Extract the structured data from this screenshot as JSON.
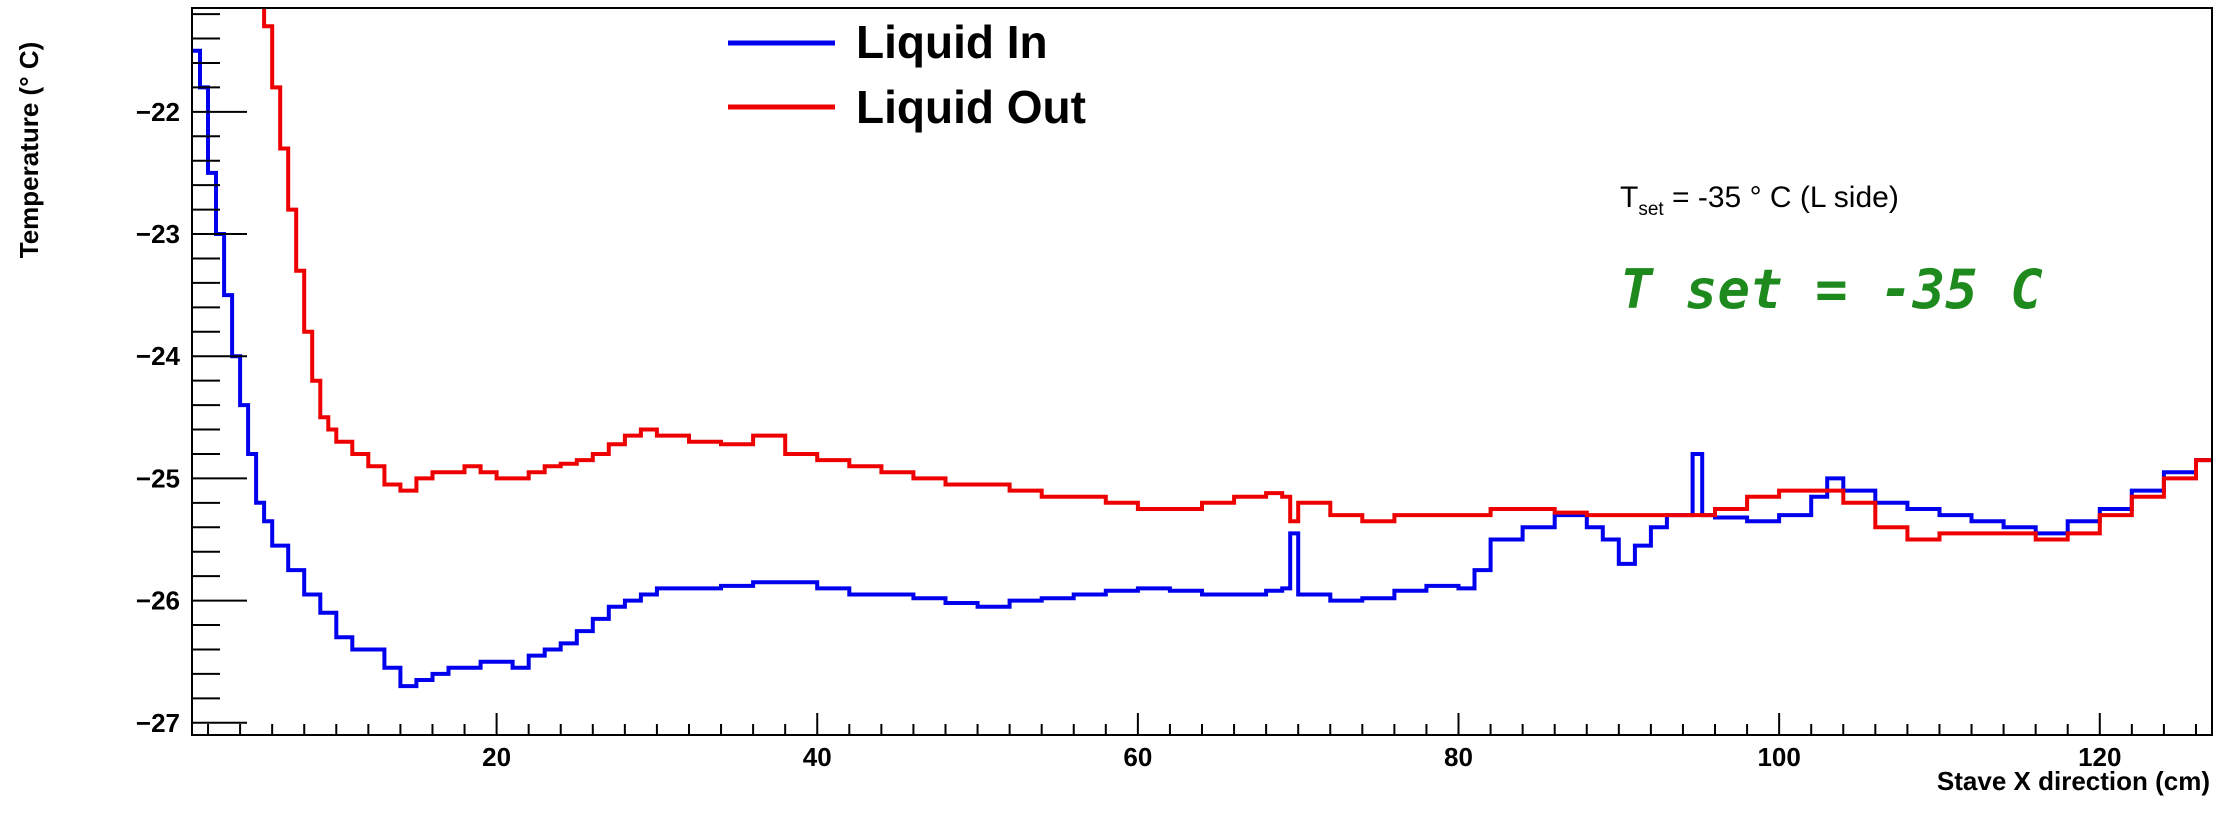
{
  "chart_data": {
    "type": "line",
    "xlabel": "Stave X direction (cm)",
    "ylabel": "Temperature (° C)",
    "xlim": [
      1,
      127
    ],
    "ylim": [
      -27.1,
      -21.15
    ],
    "x_ticks": [
      20,
      40,
      60,
      80,
      100,
      120
    ],
    "y_ticks": [
      -22,
      -23,
      -24,
      -25,
      -26,
      -27
    ],
    "grid": false,
    "legend_position": "top-left",
    "style": "step",
    "series": [
      {
        "name": "Liquid In",
        "color": "#0000ee",
        "points": [
          [
            1.0,
            -21.5
          ],
          [
            1.5,
            -21.8
          ],
          [
            2.0,
            -22.5
          ],
          [
            2.5,
            -23.0
          ],
          [
            3.0,
            -23.5
          ],
          [
            3.5,
            -24.0
          ],
          [
            4.0,
            -24.4
          ],
          [
            4.5,
            -24.8
          ],
          [
            5.0,
            -25.2
          ],
          [
            5.5,
            -25.35
          ],
          [
            6.0,
            -25.55
          ],
          [
            7.0,
            -25.75
          ],
          [
            8.0,
            -25.95
          ],
          [
            9.0,
            -26.1
          ],
          [
            10.0,
            -26.3
          ],
          [
            11.0,
            -26.4
          ],
          [
            12.0,
            -26.4
          ],
          [
            13.0,
            -26.55
          ],
          [
            14.0,
            -26.7
          ],
          [
            15.0,
            -26.65
          ],
          [
            16.0,
            -26.6
          ],
          [
            17.0,
            -26.55
          ],
          [
            18.0,
            -26.55
          ],
          [
            19.0,
            -26.5
          ],
          [
            20.0,
            -26.5
          ],
          [
            21.0,
            -26.55
          ],
          [
            22.0,
            -26.45
          ],
          [
            23.0,
            -26.4
          ],
          [
            24.0,
            -26.35
          ],
          [
            25.0,
            -26.25
          ],
          [
            26.0,
            -26.15
          ],
          [
            27.0,
            -26.05
          ],
          [
            28.0,
            -26.0
          ],
          [
            29.0,
            -25.95
          ],
          [
            30.0,
            -25.9
          ],
          [
            32.0,
            -25.9
          ],
          [
            34.0,
            -25.88
          ],
          [
            36.0,
            -25.85
          ],
          [
            38.0,
            -25.85
          ],
          [
            40.0,
            -25.9
          ],
          [
            42.0,
            -25.95
          ],
          [
            44.0,
            -25.95
          ],
          [
            46.0,
            -25.98
          ],
          [
            48.0,
            -26.02
          ],
          [
            50.0,
            -26.05
          ],
          [
            52.0,
            -26.0
          ],
          [
            54.0,
            -25.98
          ],
          [
            56.0,
            -25.95
          ],
          [
            58.0,
            -25.92
          ],
          [
            60.0,
            -25.9
          ],
          [
            62.0,
            -25.92
          ],
          [
            64.0,
            -25.95
          ],
          [
            66.0,
            -25.95
          ],
          [
            68.0,
            -25.92
          ],
          [
            69.0,
            -25.9
          ],
          [
            69.5,
            -25.45
          ],
          [
            70.0,
            -25.95
          ],
          [
            72.0,
            -26.0
          ],
          [
            74.0,
            -25.98
          ],
          [
            76.0,
            -25.92
          ],
          [
            78.0,
            -25.88
          ],
          [
            80.0,
            -25.9
          ],
          [
            81.0,
            -25.75
          ],
          [
            82.0,
            -25.5
          ],
          [
            84.0,
            -25.4
          ],
          [
            86.0,
            -25.3
          ],
          [
            88.0,
            -25.4
          ],
          [
            89.0,
            -25.5
          ],
          [
            90.0,
            -25.7
          ],
          [
            91.0,
            -25.55
          ],
          [
            92.0,
            -25.4
          ],
          [
            93.0,
            -25.3
          ],
          [
            94.0,
            -25.3
          ],
          [
            94.6,
            -24.8
          ],
          [
            95.2,
            -25.3
          ],
          [
            96.0,
            -25.32
          ],
          [
            98.0,
            -25.35
          ],
          [
            100.0,
            -25.3
          ],
          [
            102.0,
            -25.15
          ],
          [
            103.0,
            -25.0
          ],
          [
            104.0,
            -25.1
          ],
          [
            106.0,
            -25.2
          ],
          [
            108.0,
            -25.25
          ],
          [
            110.0,
            -25.3
          ],
          [
            112.0,
            -25.35
          ],
          [
            114.0,
            -25.4
          ],
          [
            116.0,
            -25.45
          ],
          [
            118.0,
            -25.35
          ],
          [
            120.0,
            -25.25
          ],
          [
            122.0,
            -25.1
          ],
          [
            124.0,
            -24.95
          ],
          [
            126.0,
            -24.85
          ],
          [
            127.0,
            -24.85
          ]
        ]
      },
      {
        "name": "Liquid Out",
        "color": "#ee0000",
        "points": [
          [
            5.0,
            -21.0
          ],
          [
            5.5,
            -21.3
          ],
          [
            6.0,
            -21.8
          ],
          [
            6.5,
            -22.3
          ],
          [
            7.0,
            -22.8
          ],
          [
            7.5,
            -23.3
          ],
          [
            8.0,
            -23.8
          ],
          [
            8.5,
            -24.2
          ],
          [
            9.0,
            -24.5
          ],
          [
            9.5,
            -24.6
          ],
          [
            10.0,
            -24.7
          ],
          [
            11.0,
            -24.8
          ],
          [
            12.0,
            -24.9
          ],
          [
            13.0,
            -25.05
          ],
          [
            14.0,
            -25.1
          ],
          [
            15.0,
            -25.0
          ],
          [
            16.0,
            -24.95
          ],
          [
            17.0,
            -24.95
          ],
          [
            18.0,
            -24.9
          ],
          [
            19.0,
            -24.95
          ],
          [
            20.0,
            -25.0
          ],
          [
            21.0,
            -25.0
          ],
          [
            22.0,
            -24.95
          ],
          [
            23.0,
            -24.9
          ],
          [
            24.0,
            -24.88
          ],
          [
            25.0,
            -24.85
          ],
          [
            26.0,
            -24.8
          ],
          [
            27.0,
            -24.72
          ],
          [
            28.0,
            -24.65
          ],
          [
            29.0,
            -24.6
          ],
          [
            30.0,
            -24.65
          ],
          [
            32.0,
            -24.7
          ],
          [
            34.0,
            -24.72
          ],
          [
            36.0,
            -24.65
          ],
          [
            38.0,
            -24.8
          ],
          [
            40.0,
            -24.85
          ],
          [
            42.0,
            -24.9
          ],
          [
            44.0,
            -24.95
          ],
          [
            46.0,
            -25.0
          ],
          [
            48.0,
            -25.05
          ],
          [
            50.0,
            -25.05
          ],
          [
            52.0,
            -25.1
          ],
          [
            54.0,
            -25.15
          ],
          [
            56.0,
            -25.15
          ],
          [
            58.0,
            -25.2
          ],
          [
            60.0,
            -25.25
          ],
          [
            62.0,
            -25.25
          ],
          [
            64.0,
            -25.2
          ],
          [
            66.0,
            -25.15
          ],
          [
            68.0,
            -25.12
          ],
          [
            69.0,
            -25.15
          ],
          [
            69.5,
            -25.35
          ],
          [
            70.0,
            -25.2
          ],
          [
            72.0,
            -25.3
          ],
          [
            74.0,
            -25.35
          ],
          [
            76.0,
            -25.3
          ],
          [
            78.0,
            -25.3
          ],
          [
            80.0,
            -25.3
          ],
          [
            82.0,
            -25.25
          ],
          [
            84.0,
            -25.25
          ],
          [
            86.0,
            -25.28
          ],
          [
            88.0,
            -25.3
          ],
          [
            90.0,
            -25.3
          ],
          [
            92.0,
            -25.3
          ],
          [
            94.0,
            -25.3
          ],
          [
            96.0,
            -25.25
          ],
          [
            98.0,
            -25.15
          ],
          [
            100.0,
            -25.1
          ],
          [
            102.0,
            -25.1
          ],
          [
            104.0,
            -25.2
          ],
          [
            106.0,
            -25.4
          ],
          [
            108.0,
            -25.5
          ],
          [
            110.0,
            -25.45
          ],
          [
            112.0,
            -25.45
          ],
          [
            114.0,
            -25.45
          ],
          [
            116.0,
            -25.5
          ],
          [
            118.0,
            -25.45
          ],
          [
            120.0,
            -25.3
          ],
          [
            122.0,
            -25.15
          ],
          [
            124.0,
            -25.0
          ],
          [
            126.0,
            -24.85
          ],
          [
            127.0,
            -24.85
          ]
        ]
      }
    ],
    "annotations": [
      {
        "main": "T",
        "sub": "set",
        "rest": " = -35 ° C (L side)",
        "color": "#000000"
      },
      {
        "text": "T set = -35 C",
        "color": "#1e8a1e"
      }
    ]
  }
}
